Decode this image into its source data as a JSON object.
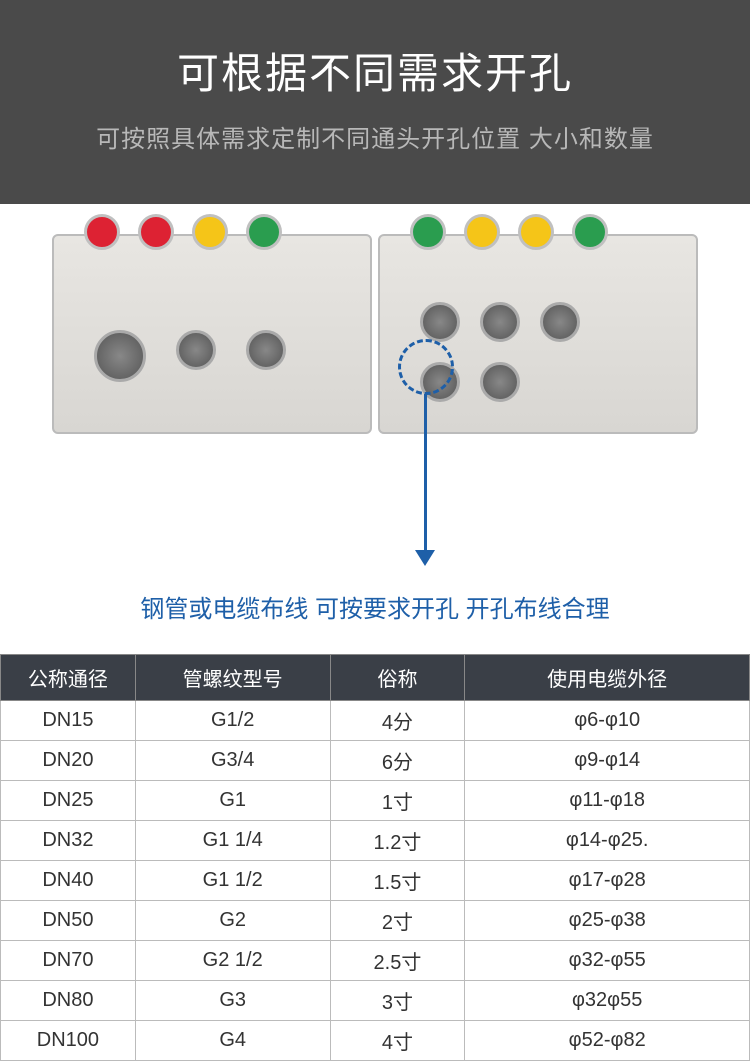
{
  "header": {
    "title": "可根据不同需求开孔",
    "subtitle": "可按照具体需求定制不同通头开孔位置 大小和数量"
  },
  "caption": "钢管或电缆布线 可按要求开孔 开孔布线合理",
  "accent_color": "#1e5fa8",
  "table": {
    "columns": [
      "公称通径",
      "管螺纹型号",
      "俗称",
      "使用电缆外径"
    ],
    "rows": [
      [
        "DN15",
        "G1/2",
        "4分",
        "φ6-φ10"
      ],
      [
        "DN20",
        "G3/4",
        "6分",
        "φ9-φ14"
      ],
      [
        "DN25",
        "G1",
        "1寸",
        "φ11-φ18"
      ],
      [
        "DN32",
        "G1 1/4",
        "1.2寸",
        "φ14-φ25."
      ],
      [
        "DN40",
        "G1 1/2",
        "1.5寸",
        "φ17-φ28"
      ],
      [
        "DN50",
        "G2",
        "2寸",
        "φ25-φ38"
      ],
      [
        "DN70",
        "G2 1/2",
        "2.5寸",
        "φ32-φ55"
      ],
      [
        "DN80",
        "G3",
        "3寸",
        "φ32φ55"
      ],
      [
        "DN100",
        "G4",
        "4寸",
        "φ52-φ82"
      ]
    ]
  }
}
